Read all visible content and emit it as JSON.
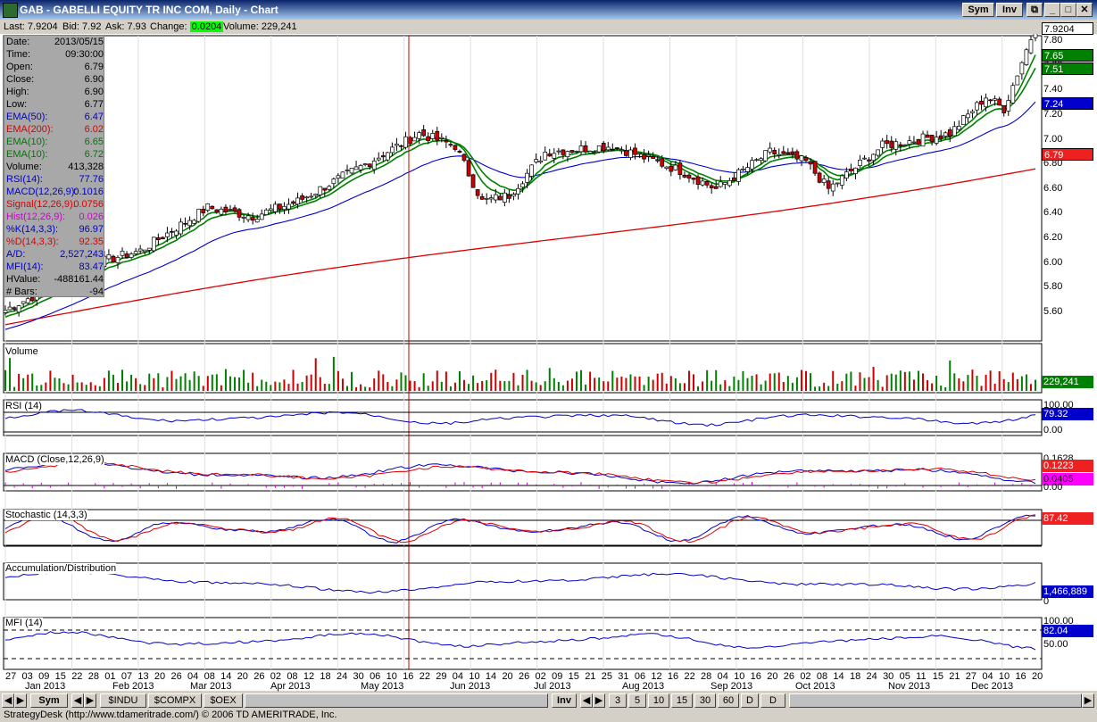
{
  "window": {
    "title": "GAB - GABELLI EQUITY TR INC COM, Daily - Chart",
    "btn_sym": "Sym",
    "btn_inv": "Inv"
  },
  "quote": {
    "last_label": "Last:",
    "last": "7.9204",
    "bid_label": "Bid:",
    "bid": "7.92",
    "ask_label": "Ask:",
    "ask": "7.93",
    "change_label": "Change:",
    "change": "0.0204",
    "volume_label": "Volume:",
    "volume": "229,241"
  },
  "data_window": [
    {
      "k": "Date:",
      "v": "2013/05/15",
      "color": "#000000"
    },
    {
      "k": "Time:",
      "v": "09:30:00",
      "color": "#000000"
    },
    {
      "k": "Open:",
      "v": "6.79",
      "color": "#000000"
    },
    {
      "k": "Close:",
      "v": "6.90",
      "color": "#000000"
    },
    {
      "k": "High:",
      "v": "6.90",
      "color": "#000000"
    },
    {
      "k": "Low:",
      "v": "6.77",
      "color": "#000000"
    },
    {
      "k": "EMA(50):",
      "v": "6.47",
      "color": "#0000cc"
    },
    {
      "k": "EMA(200):",
      "v": "6.02",
      "color": "#dd0000"
    },
    {
      "k": "EMA(10):",
      "v": "6.65",
      "color": "#007700"
    },
    {
      "k": "EMA(10):",
      "v": "6.72",
      "color": "#007700"
    },
    {
      "k": "Volume:",
      "v": "413,328",
      "color": "#000000"
    },
    {
      "k": "RSI(14):",
      "v": "77.76",
      "color": "#0000cc"
    },
    {
      "k": "MACD(12,26,9):",
      "v": "0.1016",
      "color": "#0000cc"
    },
    {
      "k": "Signal(12,26,9):",
      "v": "0.0756",
      "color": "#dd0000"
    },
    {
      "k": "Hist(12,26,9):",
      "v": "0.026",
      "color": "#cc00cc"
    },
    {
      "k": "%K(14,3,3):",
      "v": "96.97",
      "color": "#0000cc"
    },
    {
      "k": "%D(14,3,3):",
      "v": "92.35",
      "color": "#dd0000"
    },
    {
      "k": "A/D:",
      "v": "2,527,243",
      "color": "#0000cc"
    },
    {
      "k": "MFI(14):",
      "v": "83.47",
      "color": "#0000cc"
    },
    {
      "k": "HValue:",
      "v": "-488161.44",
      "color": "#000000"
    },
    {
      "k": "# Bars:",
      "v": "-94",
      "color": "#000000"
    }
  ],
  "price_axis": [
    "7.80",
    "7.60",
    "7.40",
    "7.20",
    "7.00",
    "6.80",
    "6.60",
    "6.40",
    "6.20",
    "6.00",
    "5.80",
    "5.60"
  ],
  "price_tags": [
    {
      "text": "7.9204",
      "bg": "#ffffff",
      "fg": "#000000"
    },
    {
      "text": "7.65",
      "bg": "#008000",
      "fg": "#ffffff"
    },
    {
      "text": "7.51",
      "bg": "#008000",
      "fg": "#ffffff"
    },
    {
      "text": "7.24",
      "bg": "#0000cc",
      "fg": "#ffffff"
    },
    {
      "text": "6.79",
      "bg": "#ee2020",
      "fg": "#ffffff"
    }
  ],
  "panels": {
    "volume": {
      "title": "Volume",
      "tag": "229,241"
    },
    "rsi": {
      "title": "RSI (14)",
      "top": "100.00",
      "tag": "79.32",
      "low": "0.00"
    },
    "macd": {
      "title": "MACD (Close,12,26,9)",
      "top": "0.1628",
      "tag1": "0.1223",
      "tag2": "0.0405",
      "low": "0.00"
    },
    "stoch": {
      "title": "Stochastic (14,3,3)",
      "tag": "87.42"
    },
    "ad": {
      "title": "Accumulation/Distribution",
      "tag": "1,466,889",
      "low": "0"
    },
    "mfi": {
      "title": "MFI (14)",
      "top": "100.00",
      "tag": "82.04",
      "mid": "50.00"
    }
  },
  "x_days": [
    "27",
    "03",
    "09",
    "15",
    "22",
    "28",
    "01",
    "07",
    "13",
    "20",
    "26",
    "04",
    "08",
    "14",
    "20",
    "26",
    "02",
    "08",
    "12",
    "18",
    "24",
    "30",
    "06",
    "10",
    "16",
    "22",
    "29",
    "04",
    "10",
    "14",
    "20",
    "26",
    "02",
    "09",
    "15",
    "21",
    "25",
    "31",
    "06",
    "12",
    "16",
    "22",
    "28",
    "04",
    "10",
    "16",
    "20",
    "26",
    "02",
    "08",
    "14",
    "18",
    "24",
    "30",
    "05",
    "11",
    "15",
    "21",
    "27",
    "04",
    "10",
    "16",
    "20"
  ],
  "x_months": [
    "Jan 2013",
    "Feb 2013",
    "Mar 2013",
    "Apr 2013",
    "May 2013",
    "Jun 2013",
    "Jul 2013",
    "Aug 2013",
    "Sep 2013",
    "Oct 2013",
    "Nov 2013",
    "Dec 2013"
  ],
  "tabs": [
    "Sym",
    "$INDU",
    "$COMPX",
    "$OEX"
  ],
  "period_tabs": [
    "Inv",
    "3",
    "5",
    "10",
    "15",
    "30",
    "60",
    "D",
    "D"
  ],
  "status_text": "StrategyDesk (http://www.tdameritrade.com/) © 2006 TD AMERITRADE, Inc.",
  "colors": {
    "ema200": "#dd0000",
    "ema50": "#0000cc",
    "ema10": "#008000",
    "up": "#ffffff",
    "down": "#cc0000",
    "cursor": "#cc0000"
  }
}
